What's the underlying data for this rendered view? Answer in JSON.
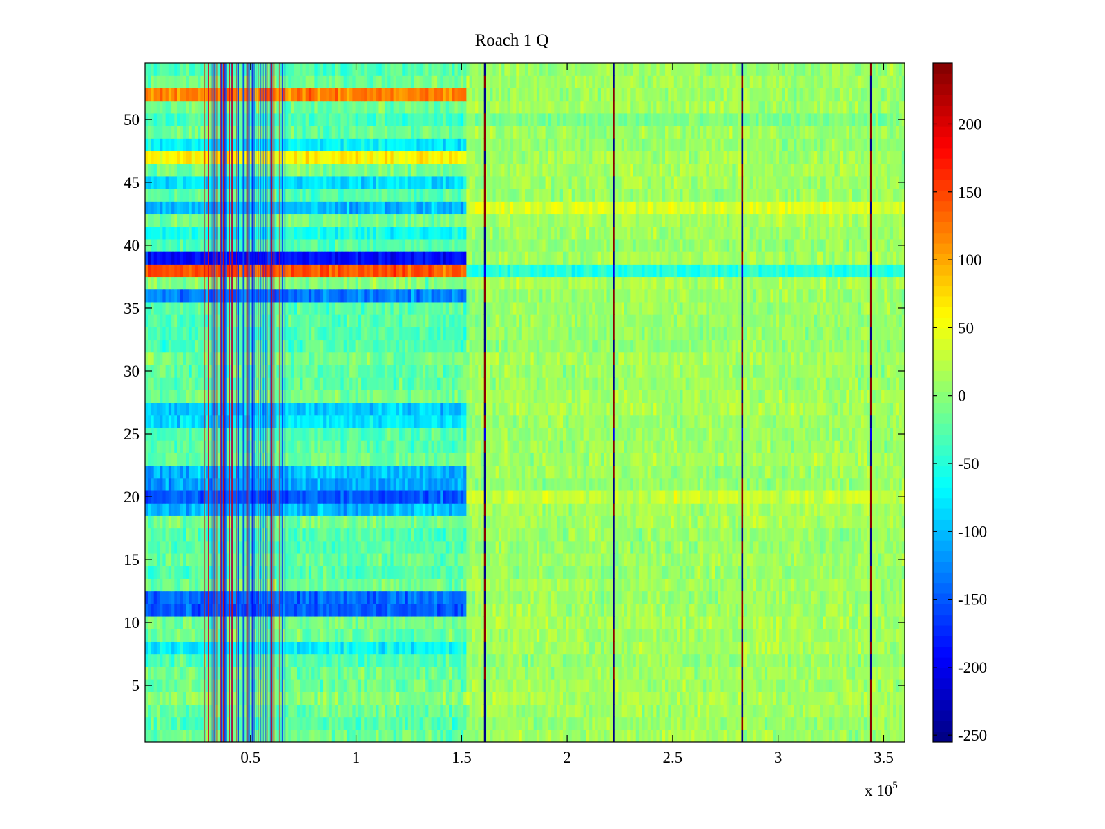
{
  "chart_data": {
    "type": "heatmap",
    "title": "Roach 1 Q",
    "xlabel": "",
    "ylabel": "",
    "x_exponent_label": "x 10",
    "x_exponent_power": "5",
    "xlim": [
      0,
      360000
    ],
    "ylim": [
      0.5,
      54.5
    ],
    "x_ticks": [
      50000,
      100000,
      150000,
      200000,
      250000,
      300000,
      350000
    ],
    "x_tick_labels": [
      "0.5",
      "1",
      "1.5",
      "2",
      "2.5",
      "3",
      "3.5"
    ],
    "y_ticks": [
      5,
      10,
      15,
      20,
      25,
      30,
      35,
      40,
      45,
      50
    ],
    "y_tick_labels": [
      "5",
      "10",
      "15",
      "20",
      "25",
      "30",
      "35",
      "40",
      "45",
      "50"
    ],
    "colorbar": {
      "colormap": "jet",
      "clim": [
        -255,
        245
      ],
      "ticks": [
        200,
        150,
        100,
        50,
        0,
        -50,
        -100,
        -150,
        -200,
        -250
      ],
      "tick_labels": [
        "200",
        "150",
        "100",
        "50",
        "0",
        "-50",
        "-100",
        "-150",
        "-200",
        "-250"
      ]
    },
    "regions": [
      {
        "x_range": [
          0,
          153000
        ],
        "description": "early segment with strong per-row offsets"
      },
      {
        "x_range": [
          153000,
          360000
        ],
        "description": "later segment, mostly near 0 to 30"
      }
    ],
    "spikes_x": [
      161000,
      222000,
      283000,
      344000
    ],
    "early_row_means": {
      "52": 120,
      "48": -70,
      "47": 60,
      "45": -80,
      "43": -100,
      "41": -60,
      "39": -190,
      "38": 140,
      "36": -130,
      "27": -90,
      "26": -80,
      "22": -100,
      "21": -110,
      "20": -150,
      "19": -100,
      "12": -140,
      "11": -150,
      "8": -70
    },
    "late_row_means": {
      "38": -50,
      "43": 40,
      "50": -10,
      "20": 30
    }
  }
}
